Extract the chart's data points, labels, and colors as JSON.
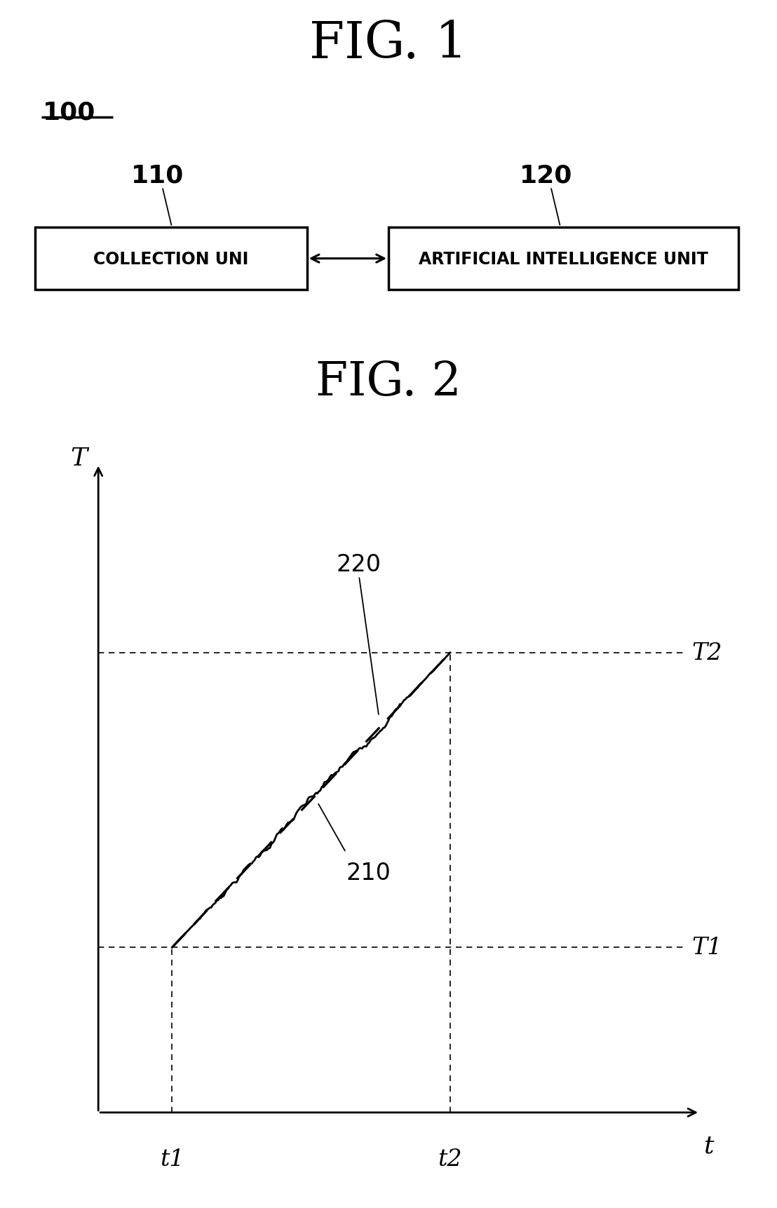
{
  "fig1_title": "FIG. 1",
  "fig2_title": "FIG. 2",
  "label_100": "100",
  "label_110": "110",
  "label_120": "120",
  "box1_text": "COLLECTION UNI",
  "box2_text": "ARTIFICIAL INTELLIGENCE UNIT",
  "fig2_xlabel": "t",
  "fig2_ylabel": "T",
  "label_T1": "T1",
  "label_T2": "T2",
  "label_t1": "t1",
  "label_t2": "t2",
  "label_210": "210",
  "label_220": "220",
  "bg_color": "#ffffff",
  "line_color": "#000000"
}
